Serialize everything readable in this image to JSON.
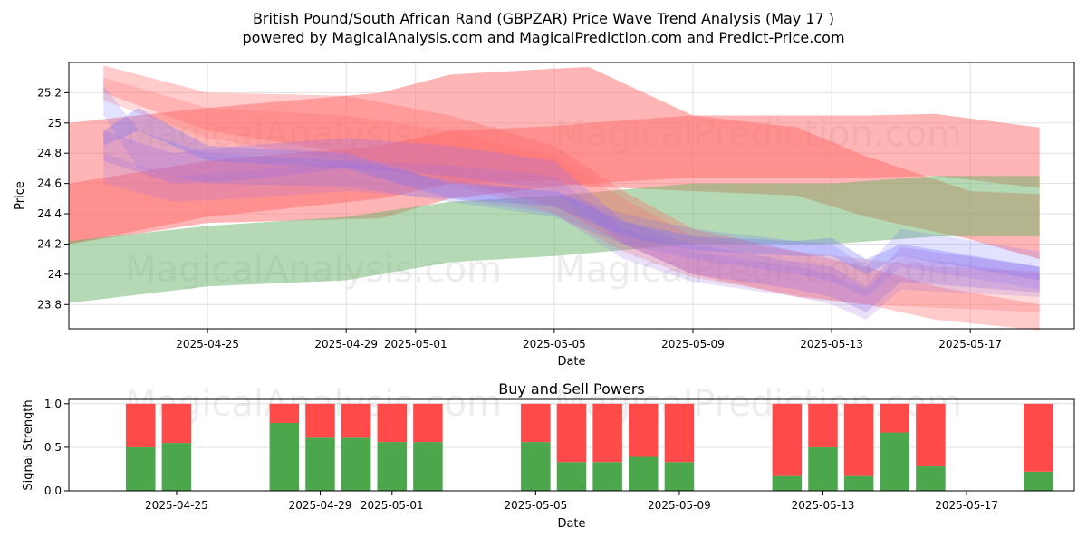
{
  "title": "British Pound/South African Rand (GBPZAR) Price Wave Trend Analysis (May 17 )",
  "subtitle": "powered by MagicalAnalysis.com and MagicalPrediction.com and Predict-Price.com",
  "watermarks": [
    "MagicalAnalysis.com",
    "MagicalPrediction.com"
  ],
  "chart_data": [
    {
      "type": "area",
      "name": "price-wave-panel",
      "xlabel": "Date",
      "ylabel": "Price",
      "ylim": [
        23.64,
        25.4
      ],
      "xlim": [
        "2025-04-21",
        "2025-05-20"
      ],
      "xticks": [
        "2025-04-25",
        "2025-04-29",
        "2025-05-01",
        "2025-05-05",
        "2025-05-09",
        "2025-05-13",
        "2025-05-17"
      ],
      "yticks": [
        23.8,
        24.0,
        24.2,
        24.4,
        24.6,
        24.8,
        25.0,
        25.2
      ],
      "grid": true,
      "colors": {
        "red": "#ff6b6b",
        "green": "#6ab46a",
        "blue": "#6f6fff",
        "purple": "#a070e0"
      },
      "bands": [
        {
          "color": "red",
          "opacity": 0.5,
          "x": [
            "2025-04-21",
            "2025-04-25",
            "2025-04-30",
            "2025-05-02",
            "2025-05-05",
            "2025-05-06",
            "2025-05-09",
            "2025-05-14",
            "2025-05-16",
            "2025-05-19"
          ],
          "upper": [
            25.0,
            25.1,
            25.2,
            25.32,
            25.36,
            25.37,
            25.05,
            25.05,
            25.06,
            24.97
          ],
          "lower": [
            24.2,
            24.34,
            24.37,
            24.5,
            24.58,
            24.6,
            24.64,
            24.64,
            24.65,
            24.57
          ]
        },
        {
          "color": "red",
          "opacity": 0.5,
          "x": [
            "2025-04-21",
            "2025-04-25",
            "2025-04-30",
            "2025-05-02",
            "2025-05-05",
            "2025-05-06",
            "2025-05-09",
            "2025-05-12",
            "2025-05-14",
            "2025-05-17",
            "2025-05-19"
          ],
          "upper": [
            24.6,
            24.75,
            24.85,
            24.95,
            24.98,
            25.0,
            25.05,
            24.97,
            24.78,
            24.55,
            24.53
          ],
          "lower": [
            24.2,
            24.38,
            24.5,
            24.6,
            24.62,
            24.58,
            24.55,
            24.52,
            24.38,
            24.23,
            24.1
          ]
        },
        {
          "color": "green",
          "opacity": 0.5,
          "x": [
            "2025-04-21",
            "2025-04-25",
            "2025-04-29",
            "2025-05-02",
            "2025-05-05",
            "2025-05-09",
            "2025-05-13",
            "2025-05-16",
            "2025-05-19"
          ],
          "upper": [
            24.22,
            24.32,
            24.38,
            24.48,
            24.52,
            24.6,
            24.6,
            24.65,
            24.65
          ],
          "lower": [
            23.81,
            23.92,
            23.96,
            24.08,
            24.12,
            24.2,
            24.2,
            24.25,
            24.25
          ]
        },
        {
          "color": "red",
          "opacity": 0.35,
          "x": [
            "2025-04-22",
            "2025-04-25",
            "2025-04-29",
            "2025-05-02",
            "2025-05-05",
            "2025-05-07",
            "2025-05-09",
            "2025-05-12",
            "2025-05-14",
            "2025-05-16",
            "2025-05-19"
          ],
          "upper": [
            25.38,
            25.2,
            25.18,
            25.05,
            24.85,
            24.55,
            24.3,
            24.15,
            24.05,
            23.92,
            23.8
          ],
          "lower": [
            25.2,
            24.95,
            24.8,
            24.62,
            24.45,
            24.2,
            24.0,
            23.85,
            23.8,
            23.7,
            23.63
          ]
        },
        {
          "color": "red",
          "opacity": 0.25,
          "x": [
            "2025-04-22",
            "2025-04-25",
            "2025-04-29",
            "2025-05-02",
            "2025-05-05",
            "2025-05-07",
            "2025-05-09",
            "2025-05-12",
            "2025-05-14",
            "2025-05-16",
            "2025-05-19"
          ],
          "upper": [
            25.3,
            25.1,
            25.05,
            24.95,
            24.78,
            24.5,
            24.25,
            24.15,
            24.1,
            24.05,
            24.02
          ],
          "lower": [
            25.15,
            24.9,
            24.75,
            24.6,
            24.4,
            24.15,
            23.98,
            23.86,
            23.8,
            23.78,
            23.75
          ]
        },
        {
          "color": "blue",
          "opacity": 0.3,
          "x": [
            "2025-04-22",
            "2025-04-23",
            "2025-04-25",
            "2025-04-29",
            "2025-05-02",
            "2025-05-05",
            "2025-05-07",
            "2025-05-09",
            "2025-05-12",
            "2025-05-13",
            "2025-05-14",
            "2025-05-15",
            "2025-05-19"
          ],
          "upper": [
            24.95,
            25.1,
            24.85,
            24.8,
            24.6,
            24.55,
            24.35,
            24.25,
            24.22,
            24.24,
            24.1,
            24.2,
            24.05
          ],
          "lower": [
            24.85,
            24.95,
            24.75,
            24.7,
            24.5,
            24.45,
            24.25,
            24.16,
            24.12,
            24.12,
            24.0,
            24.12,
            23.96
          ]
        },
        {
          "color": "blue",
          "opacity": 0.2,
          "x": [
            "2025-04-22",
            "2025-04-23",
            "2025-04-25",
            "2025-04-29",
            "2025-05-02",
            "2025-05-05",
            "2025-05-07",
            "2025-05-09",
            "2025-05-12",
            "2025-05-13",
            "2025-05-14",
            "2025-05-15",
            "2025-05-19"
          ],
          "upper": [
            25.25,
            24.95,
            24.8,
            24.75,
            24.62,
            24.55,
            24.4,
            24.3,
            24.22,
            24.2,
            24.05,
            24.3,
            24.15
          ],
          "lower": [
            25.05,
            24.7,
            24.6,
            24.58,
            24.48,
            24.38,
            24.2,
            24.1,
            24.0,
            23.95,
            23.85,
            24.05,
            23.9
          ]
        },
        {
          "color": "purple",
          "opacity": 0.3,
          "x": [
            "2025-04-22",
            "2025-04-24",
            "2025-04-26",
            "2025-04-29",
            "2025-05-02",
            "2025-05-05",
            "2025-05-07",
            "2025-05-09",
            "2025-05-12",
            "2025-05-13",
            "2025-05-14",
            "2025-05-15",
            "2025-05-19"
          ],
          "upper": [
            24.95,
            24.8,
            24.85,
            24.9,
            24.85,
            24.75,
            24.35,
            24.2,
            24.08,
            24.05,
            23.92,
            24.18,
            24.05
          ],
          "lower": [
            24.75,
            24.6,
            24.62,
            24.7,
            24.65,
            24.55,
            24.2,
            24.0,
            23.9,
            23.85,
            23.75,
            23.95,
            23.88
          ]
        },
        {
          "color": "purple",
          "opacity": 0.22,
          "x": [
            "2025-04-22",
            "2025-04-24",
            "2025-04-26",
            "2025-04-29",
            "2025-05-02",
            "2025-05-05",
            "2025-05-07",
            "2025-05-09",
            "2025-05-12",
            "2025-05-13",
            "2025-05-14",
            "2025-05-15",
            "2025-05-19"
          ],
          "upper": [
            24.8,
            24.65,
            24.68,
            24.75,
            24.72,
            24.65,
            24.3,
            24.15,
            24.05,
            24.0,
            23.9,
            24.12,
            24.0
          ],
          "lower": [
            24.6,
            24.48,
            24.5,
            24.55,
            24.5,
            24.4,
            24.1,
            23.95,
            23.85,
            23.8,
            23.7,
            23.9,
            23.85
          ]
        }
      ]
    },
    {
      "type": "bar",
      "name": "buy-sell-powers",
      "title": "Buy and Sell Powers",
      "xlabel": "Date",
      "ylabel": "Signal Strength",
      "ylim": [
        0,
        1.05
      ],
      "yticks": [
        "0.0",
        "0.5",
        "1.0"
      ],
      "xticks": [
        "2025-04-25",
        "2025-04-29",
        "2025-05-01",
        "2025-05-05",
        "2025-05-09",
        "2025-05-13",
        "2025-05-17"
      ],
      "colors": {
        "buy": "#4ca64c",
        "sell": "#ff4a4a"
      },
      "categories": [
        "2025-04-24",
        "2025-04-25",
        "2025-04-28",
        "2025-04-29",
        "2025-04-30",
        "2025-05-01",
        "2025-05-02",
        "2025-05-05",
        "2025-05-06",
        "2025-05-07",
        "2025-05-08",
        "2025-05-09",
        "2025-05-12",
        "2025-05-13",
        "2025-05-14",
        "2025-05-15",
        "2025-05-16",
        "2025-05-19"
      ],
      "series": [
        {
          "values": [
            0.5,
            0.55,
            0.78,
            0.61,
            0.61,
            0.56,
            0.56,
            0.56,
            0.33,
            0.33,
            0.39,
            0.33,
            0.17,
            0.5,
            0.17,
            0.67,
            0.28,
            0.22
          ]
        },
        {
          "values": [
            0.5,
            0.45,
            0.22,
            0.39,
            0.39,
            0.44,
            0.44,
            0.44,
            0.67,
            0.67,
            0.61,
            0.67,
            0.83,
            0.5,
            0.83,
            0.33,
            0.72,
            0.78
          ]
        }
      ]
    }
  ]
}
